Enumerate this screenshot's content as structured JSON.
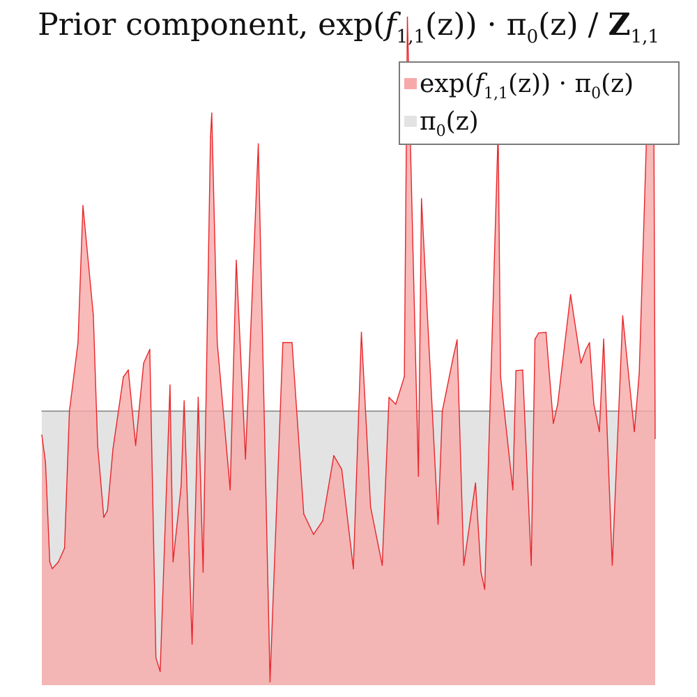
{
  "title": {
    "prefix": "Prior component, exp(",
    "f": "f",
    "f_sub": "1,1",
    "mid": "(z)) · π",
    "pi_sub": "0",
    "suffix": "(z) / ",
    "Z": "Z",
    "Z_sub": "1,1"
  },
  "legend": {
    "items": [
      {
        "name": "exp(f1,1(z)) · π0(z)",
        "parts": [
          "exp(",
          "f",
          "1,1",
          "(z)) · π",
          "0",
          "(z)"
        ],
        "color": "#f7a9a9"
      },
      {
        "name": "π0(z)",
        "parts": [
          "π",
          "0",
          "(z)"
        ],
        "color": "#e3e3e3"
      }
    ],
    "placement": "top-right"
  },
  "chart_data": {
    "type": "area",
    "title": "Prior component, exp(f1,1(z)) · π0(z) / Z1,1",
    "xlabel": "",
    "ylabel": "",
    "axes_visible": false,
    "grid": false,
    "xlim": [
      0,
      1
    ],
    "ylim": [
      0,
      1.0
    ],
    "series": [
      {
        "name": "π0(z)",
        "color": "#e3e3e3",
        "line_color": "#8c8c8c",
        "x": [
          0,
          1
        ],
        "y": [
          0.4,
          0.4
        ]
      },
      {
        "name": "exp(f1,1(z)) · π0(z)",
        "color": "#f7a9a9",
        "line_color": "#e8262a",
        "x": [
          0.0,
          0.006,
          0.013,
          0.017,
          0.027,
          0.037,
          0.045,
          0.059,
          0.067,
          0.084,
          0.091,
          0.101,
          0.107,
          0.116,
          0.133,
          0.141,
          0.153,
          0.166,
          0.176,
          0.186,
          0.193,
          0.209,
          0.214,
          0.227,
          0.232,
          0.245,
          0.255,
          0.263,
          0.275,
          0.277,
          0.286,
          0.307,
          0.317,
          0.332,
          0.353,
          0.372,
          0.393,
          0.408,
          0.427,
          0.443,
          0.458,
          0.476,
          0.489,
          0.508,
          0.521,
          0.536,
          0.555,
          0.566,
          0.577,
          0.591,
          0.596,
          0.614,
          0.619,
          0.646,
          0.653,
          0.671,
          0.677,
          0.688,
          0.707,
          0.716,
          0.722,
          0.744,
          0.748,
          0.768,
          0.773,
          0.784,
          0.798,
          0.804,
          0.81,
          0.822,
          0.834,
          0.841,
          0.862,
          0.879,
          0.887,
          0.893,
          0.9,
          0.909,
          0.916,
          0.93,
          0.945,
          0.947,
          0.966,
          0.974,
          0.988,
          0.998,
          1.0
        ],
        "y": [
          0.365,
          0.325,
          0.18,
          0.17,
          0.18,
          0.2,
          0.4,
          0.5,
          0.7,
          0.54,
          0.35,
          0.245,
          0.255,
          0.345,
          0.45,
          0.46,
          0.35,
          0.47,
          0.49,
          0.04,
          0.02,
          0.438,
          0.18,
          0.29,
          0.415,
          0.06,
          0.42,
          0.165,
          0.8,
          0.835,
          0.5,
          0.285,
          0.62,
          0.33,
          0.79,
          0.005,
          0.5,
          0.5,
          0.25,
          0.22,
          0.24,
          0.335,
          0.315,
          0.17,
          0.515,
          0.26,
          0.175,
          0.42,
          0.41,
          0.45,
          0.975,
          0.305,
          0.71,
          0.235,
          0.4,
          0.48,
          0.504,
          0.175,
          0.295,
          0.165,
          0.14,
          0.81,
          0.45,
          0.285,
          0.459,
          0.46,
          0.175,
          0.505,
          0.514,
          0.515,
          0.382,
          0.41,
          0.57,
          0.47,
          0.49,
          0.5,
          0.41,
          0.37,
          0.505,
          0.175,
          0.495,
          0.539,
          0.37,
          0.455,
          0.86,
          0.8,
          0.36
        ]
      }
    ]
  }
}
